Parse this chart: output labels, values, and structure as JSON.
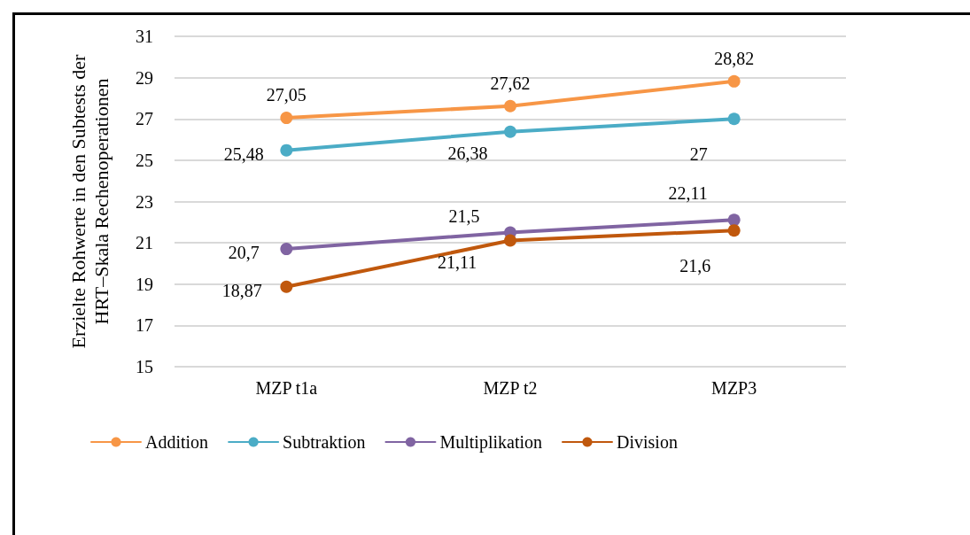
{
  "chart_data": {
    "type": "line",
    "ylabel": "Erzielte Rohwerte in den Subtests der\nHRT–Skala Rechenoperationen",
    "categories": [
      "MZP t1a",
      "MZP t2",
      "MZP3"
    ],
    "series": [
      {
        "name": "Addition",
        "color": "#f79646",
        "values": [
          27.05,
          27.62,
          28.82
        ],
        "value_labels": [
          "27,05",
          "27,62",
          "28,82"
        ]
      },
      {
        "name": "Subtraktion",
        "color": "#4bacc6",
        "values": [
          25.48,
          26.38,
          27
        ],
        "value_labels": [
          "25,48",
          "26,38",
          "27"
        ]
      },
      {
        "name": "Multiplikation",
        "color": "#8064a2",
        "values": [
          20.7,
          21.5,
          22.11
        ],
        "value_labels": [
          "20,7",
          "21,5",
          "22,11"
        ]
      },
      {
        "name": "Division",
        "color": "#c0580d",
        "values": [
          18.87,
          21.11,
          21.6
        ],
        "value_labels": [
          "18,87",
          "21,11",
          "21,6"
        ]
      }
    ],
    "ylim": [
      15,
      31
    ],
    "yticks": [
      15,
      17,
      19,
      21,
      23,
      25,
      27,
      29,
      31
    ],
    "grid": "y",
    "legend": "bottom",
    "marker": "circle",
    "line_style": "solid"
  }
}
